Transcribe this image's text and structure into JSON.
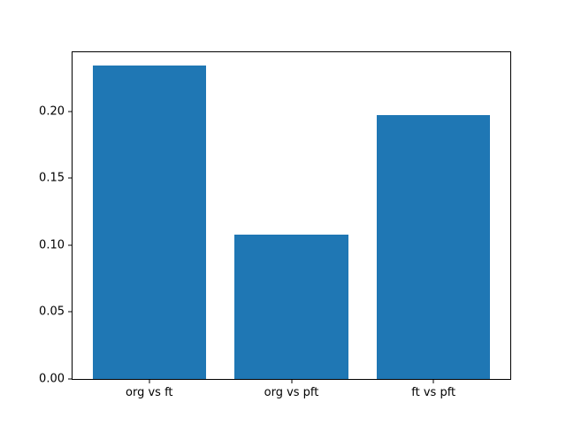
{
  "figure": {
    "background": "#ffffff",
    "spine_color": "#000000",
    "text_color": "#000000"
  },
  "chart_data": {
    "type": "bar",
    "categories": [
      "org vs ft",
      "org vs pft",
      "ft vs pft"
    ],
    "values": [
      0.234,
      0.108,
      0.197
    ],
    "title": "",
    "xlabel": "",
    "ylabel": "",
    "ylim": [
      0,
      0.244
    ],
    "yticks": [
      0.0,
      0.05,
      0.1,
      0.15,
      0.2
    ],
    "ytick_labels": [
      "0.00",
      "0.05",
      "0.10",
      "0.15",
      "0.20"
    ],
    "bar_color": "#1f77b4",
    "bar_width_fraction": 0.8,
    "grid": false,
    "legend": null
  }
}
